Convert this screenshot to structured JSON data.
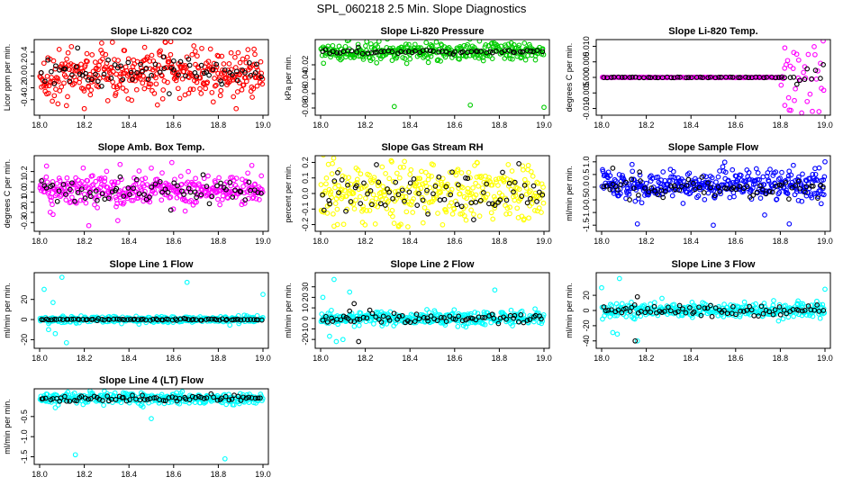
{
  "title": "SPL_060218  2.5 Min. Slope Diagnostics",
  "colors": {
    "black": "#000000",
    "red": "#ff0000",
    "green": "#00cc00",
    "magenta": "#ff00ff",
    "yellow": "#ffff00",
    "blue": "#0000ff",
    "cyan": "#00ffff"
  },
  "chart_data": [
    {
      "type": "scatter",
      "title": "Slope Li-820 CO2",
      "ylabel": "Licor ppm per min.",
      "xlim": [
        18.0,
        19.0
      ],
      "xticks": [
        "18.0",
        "18.2",
        "18.4",
        "18.6",
        "18.8",
        "19.0"
      ],
      "ylim": [
        -0.6,
        0.55
      ],
      "yticks": [
        -0.4,
        -0.2,
        0.0,
        0.2,
        0.4
      ],
      "ytick_labels": [
        "-0.4",
        "-0.2",
        "0.0",
        "0.2",
        "0.4"
      ],
      "series": [
        {
          "name": "all",
          "color": "red",
          "gen": {
            "kind": "noise",
            "n": 380,
            "center": 0.03,
            "spread": 0.2,
            "outliers": [
              [
                18.12,
                -0.5
              ],
              [
                18.47,
                0.48
              ],
              [
                18.88,
                -0.55
              ],
              [
                18.96,
                0.45
              ],
              [
                18.2,
                -0.55
              ]
            ]
          }
        },
        {
          "name": "subset",
          "color": "black",
          "gen": {
            "kind": "noise",
            "n": 70,
            "center": 0.05,
            "spread": 0.12,
            "outliers": [
              [
                18.17,
                0.47
              ],
              [
                18.6,
                0.25
              ]
            ]
          }
        }
      ]
    },
    {
      "type": "scatter",
      "title": "Slope Li-820 Pressure",
      "ylabel": "kPa per min.",
      "xlim": [
        18.0,
        19.0
      ],
      "xticks": [
        "18.0",
        "18.2",
        "18.4",
        "18.6",
        "18.8",
        "19.0"
      ],
      "ylim": [
        -0.085,
        0.01
      ],
      "yticks": [
        -0.08,
        -0.06,
        -0.04,
        -0.02
      ],
      "ytick_labels": [
        "-0.08",
        "-0.06",
        "-0.04",
        "-0.02"
      ],
      "series": [
        {
          "name": "all",
          "color": "green",
          "gen": {
            "kind": "noise",
            "n": 320,
            "center": -0.002,
            "spread": 0.006,
            "outliers": [
              [
                18.33,
                -0.078
              ],
              [
                18.67,
                -0.076
              ],
              [
                19.0,
                -0.079
              ],
              [
                18.4,
                -0.012
              ]
            ]
          }
        },
        {
          "name": "subset",
          "color": "black",
          "gen": {
            "kind": "noise",
            "n": 60,
            "center": -0.002,
            "spread": 0.0015,
            "outliers": []
          }
        }
      ]
    },
    {
      "type": "scatter",
      "title": "Slope Li-820 Temp.",
      "ylabel": "degrees C per min.",
      "xlim": [
        18.0,
        19.0
      ],
      "xticks": [
        "18.0",
        "18.2",
        "18.4",
        "18.6",
        "18.8",
        "19.0"
      ],
      "ylim": [
        -0.011,
        0.011
      ],
      "yticks": [
        -0.01,
        -0.005,
        0.0,
        0.005,
        0.01
      ],
      "ytick_labels": [
        "-0.010",
        "-0.005",
        "0.000",
        "0.005",
        "0.010"
      ],
      "series": [
        {
          "name": "all",
          "color": "magenta",
          "gen": {
            "kind": "flat_burst",
            "n": 170,
            "center": 0.0,
            "spread": 0.0,
            "burst_start": 18.8,
            "burst_spread": 0.0045,
            "outliers": [
              [
                18.82,
                0.0095
              ],
              [
                18.84,
                -0.0105
              ],
              [
                18.86,
                0.008
              ],
              [
                18.82,
                -0.009
              ]
            ]
          }
        },
        {
          "name": "subset",
          "color": "black",
          "gen": {
            "kind": "flat_burst",
            "n": 60,
            "center": 0.0,
            "spread": 0.0,
            "burst_start": 18.86,
            "burst_spread": 0.002,
            "outliers": []
          }
        }
      ]
    },
    {
      "type": "scatter",
      "title": "Slope Amb. Box Temp.",
      "ylabel": "degrees C per min.",
      "xlim": [
        18.0,
        19.0
      ],
      "xticks": [
        "18.0",
        "18.2",
        "18.4",
        "18.6",
        "18.8",
        "19.0"
      ],
      "ylim": [
        -0.35,
        0.32
      ],
      "yticks": [
        -0.3,
        -0.2,
        -0.1,
        0.0,
        0.1,
        0.2
      ],
      "ytick_labels": [
        "-0.3",
        "-0.2",
        "-0.1",
        "0.0",
        "0.1",
        "0.2"
      ],
      "series": [
        {
          "name": "all",
          "color": "magenta",
          "gen": {
            "kind": "noise",
            "n": 360,
            "center": 0.02,
            "spread": 0.08,
            "outliers": [
              [
                18.06,
                -0.22
              ],
              [
                18.22,
                -0.33
              ],
              [
                18.35,
                -0.28
              ],
              [
                18.95,
                0.26
              ],
              [
                18.36,
                0.27
              ]
            ]
          }
        },
        {
          "name": "subset",
          "color": "black",
          "gen": {
            "kind": "noise",
            "n": 70,
            "center": 0.0,
            "spread": 0.06,
            "outliers": []
          }
        }
      ]
    },
    {
      "type": "scatter",
      "title": "Slope Gas Stream RH",
      "ylabel": "percent per min.",
      "xlim": [
        18.0,
        19.0
      ],
      "xticks": [
        "18.0",
        "18.2",
        "18.4",
        "18.6",
        "18.8",
        "19.0"
      ],
      "ylim": [
        -0.22,
        0.22
      ],
      "yticks": [
        -0.2,
        -0.1,
        0.0,
        0.1,
        0.2
      ],
      "ytick_labels": [
        "-0.2",
        "-0.1",
        "0.0",
        "0.1",
        "0.2"
      ],
      "series": [
        {
          "name": "all",
          "color": "yellow",
          "gen": {
            "kind": "noise",
            "n": 360,
            "center": 0.0,
            "spread": 0.09,
            "outliers": [
              [
                18.06,
                -0.21
              ],
              [
                18.7,
                0.2
              ],
              [
                18.93,
                0.18
              ]
            ]
          }
        },
        {
          "name": "subset",
          "color": "black",
          "gen": {
            "kind": "noise",
            "n": 75,
            "center": 0.0,
            "spread": 0.07,
            "outliers": []
          }
        }
      ]
    },
    {
      "type": "scatter",
      "title": "Slope Sample Flow",
      "ylabel": "ml/min per min.",
      "xlim": [
        18.0,
        19.0
      ],
      "xticks": [
        "18.0",
        "18.2",
        "18.4",
        "18.6",
        "18.8",
        "19.0"
      ],
      "ylim": [
        -1.6,
        1.1
      ],
      "yticks": [
        -1.5,
        -1.0,
        -0.5,
        0.0,
        0.5,
        1.0
      ],
      "ytick_labels": [
        "-1.5",
        "-1.0",
        "-0.5",
        "0.0",
        "0.5",
        "1.0"
      ],
      "series": [
        {
          "name": "all",
          "color": "blue",
          "gen": {
            "kind": "noise",
            "n": 380,
            "center": 0.08,
            "spread": 0.28,
            "outliers": [
              [
                18.16,
                -1.45
              ],
              [
                18.5,
                -1.5
              ],
              [
                18.84,
                -1.45
              ],
              [
                19.0,
                1.0
              ],
              [
                18.73,
                -1.1
              ]
            ]
          }
        },
        {
          "name": "subset",
          "color": "black",
          "gen": {
            "kind": "noise",
            "n": 70,
            "center": -0.05,
            "spread": 0.2,
            "outliers": [
              [
                18.05,
                0.75
              ],
              [
                18.17,
                0.6
              ]
            ]
          }
        }
      ]
    },
    {
      "type": "scatter",
      "title": "Slope Line 1 Flow",
      "ylabel": "ml/min per min.",
      "xlim": [
        18.0,
        19.0
      ],
      "xticks": [
        "18.0",
        "18.2",
        "18.4",
        "18.6",
        "18.8",
        "19.0"
      ],
      "ylim": [
        -25,
        43
      ],
      "yticks": [
        -20,
        0,
        20
      ],
      "ytick_labels": [
        "-20",
        "0",
        "20"
      ],
      "series": [
        {
          "name": "all",
          "color": "cyan",
          "gen": {
            "kind": "noise",
            "n": 330,
            "center": 0.0,
            "spread": 1.6,
            "outliers": [
              [
                18.02,
                30
              ],
              [
                18.1,
                42
              ],
              [
                18.06,
                17
              ],
              [
                18.07,
                -14
              ],
              [
                18.12,
                -23
              ],
              [
                18.66,
                37
              ],
              [
                19.0,
                25
              ],
              [
                18.04,
                -10
              ]
            ]
          }
        },
        {
          "name": "subset",
          "color": "black",
          "gen": {
            "kind": "noise",
            "n": 80,
            "center": 0.0,
            "spread": 0.4,
            "outliers": []
          }
        }
      ]
    },
    {
      "type": "scatter",
      "title": "Slope Line 2 Flow",
      "ylabel": "ml/min per min.",
      "xlim": [
        18.0,
        19.0
      ],
      "xticks": [
        "18.0",
        "18.2",
        "18.4",
        "18.6",
        "18.8",
        "19.0"
      ],
      "ylim": [
        -25,
        40
      ],
      "yticks": [
        -20,
        -10,
        0,
        10,
        20,
        30
      ],
      "ytick_labels": [
        "-20",
        "-10",
        "0",
        "10",
        "20",
        "30"
      ],
      "series": [
        {
          "name": "all",
          "color": "cyan",
          "gen": {
            "kind": "noise",
            "n": 340,
            "center": 0.0,
            "spread": 3.0,
            "outliers": [
              [
                18.06,
                37
              ],
              [
                18.01,
                20
              ],
              [
                18.04,
                -17
              ],
              [
                18.07,
                -22
              ],
              [
                18.1,
                -20
              ],
              [
                18.13,
                25
              ],
              [
                18.78,
                27
              ],
              [
                18.96,
                9
              ]
            ]
          }
        },
        {
          "name": "subset",
          "color": "black",
          "gen": {
            "kind": "noise",
            "n": 75,
            "center": 0.0,
            "spread": 2.5,
            "outliers": [
              [
                18.15,
                14
              ],
              [
                18.17,
                -22
              ],
              [
                18.13,
                7
              ]
            ]
          }
        }
      ]
    },
    {
      "type": "scatter",
      "title": "Slope Line 3 Flow",
      "ylabel": "ml/min per min.",
      "xlim": [
        18.0,
        19.0
      ],
      "xticks": [
        "18.0",
        "18.2",
        "18.4",
        "18.6",
        "18.8",
        "19.0"
      ],
      "ylim": [
        -45,
        45
      ],
      "yticks": [
        -40,
        -20,
        0,
        20
      ],
      "ytick_labels": [
        "-40",
        "-20",
        "0",
        "20"
      ],
      "series": [
        {
          "name": "all",
          "color": "cyan",
          "gen": {
            "kind": "noise",
            "n": 340,
            "center": 0.0,
            "spread": 4.5,
            "outliers": [
              [
                18.08,
                42
              ],
              [
                18.0,
                30
              ],
              [
                18.05,
                -29
              ],
              [
                18.07,
                -31
              ],
              [
                18.16,
                -40
              ],
              [
                18.27,
                16
              ],
              [
                18.77,
                13
              ],
              [
                19.0,
                28
              ]
            ]
          }
        },
        {
          "name": "subset",
          "color": "black",
          "gen": {
            "kind": "noise",
            "n": 75,
            "center": 0.0,
            "spread": 3.0,
            "outliers": [
              [
                18.16,
                18
              ],
              [
                18.15,
                -40
              ]
            ]
          }
        }
      ]
    },
    {
      "type": "scatter",
      "title": "Slope Line 4 (LT) Flow",
      "ylabel": "ml/min per min.",
      "xlim": [
        18.0,
        19.0
      ],
      "xticks": [
        "18.0",
        "18.2",
        "18.4",
        "18.6",
        "18.8",
        "19.0"
      ],
      "ylim": [
        -1.6,
        0.1
      ],
      "yticks": [
        -1.5,
        -1.0,
        -0.5
      ],
      "ytick_labels": [
        "-1.5",
        "-1.0",
        "-0.5"
      ],
      "series": [
        {
          "name": "all",
          "color": "cyan",
          "gen": {
            "kind": "noise",
            "n": 330,
            "center": -0.05,
            "spread": 0.07,
            "outliers": [
              [
                18.16,
                -1.45
              ],
              [
                18.5,
                -0.55
              ],
              [
                18.83,
                -1.55
              ],
              [
                18.03,
                0.06
              ],
              [
                18.07,
                -0.28
              ]
            ]
          }
        },
        {
          "name": "subset",
          "color": "black",
          "gen": {
            "kind": "noise",
            "n": 75,
            "center": -0.05,
            "spread": 0.05,
            "outliers": []
          }
        }
      ]
    }
  ]
}
